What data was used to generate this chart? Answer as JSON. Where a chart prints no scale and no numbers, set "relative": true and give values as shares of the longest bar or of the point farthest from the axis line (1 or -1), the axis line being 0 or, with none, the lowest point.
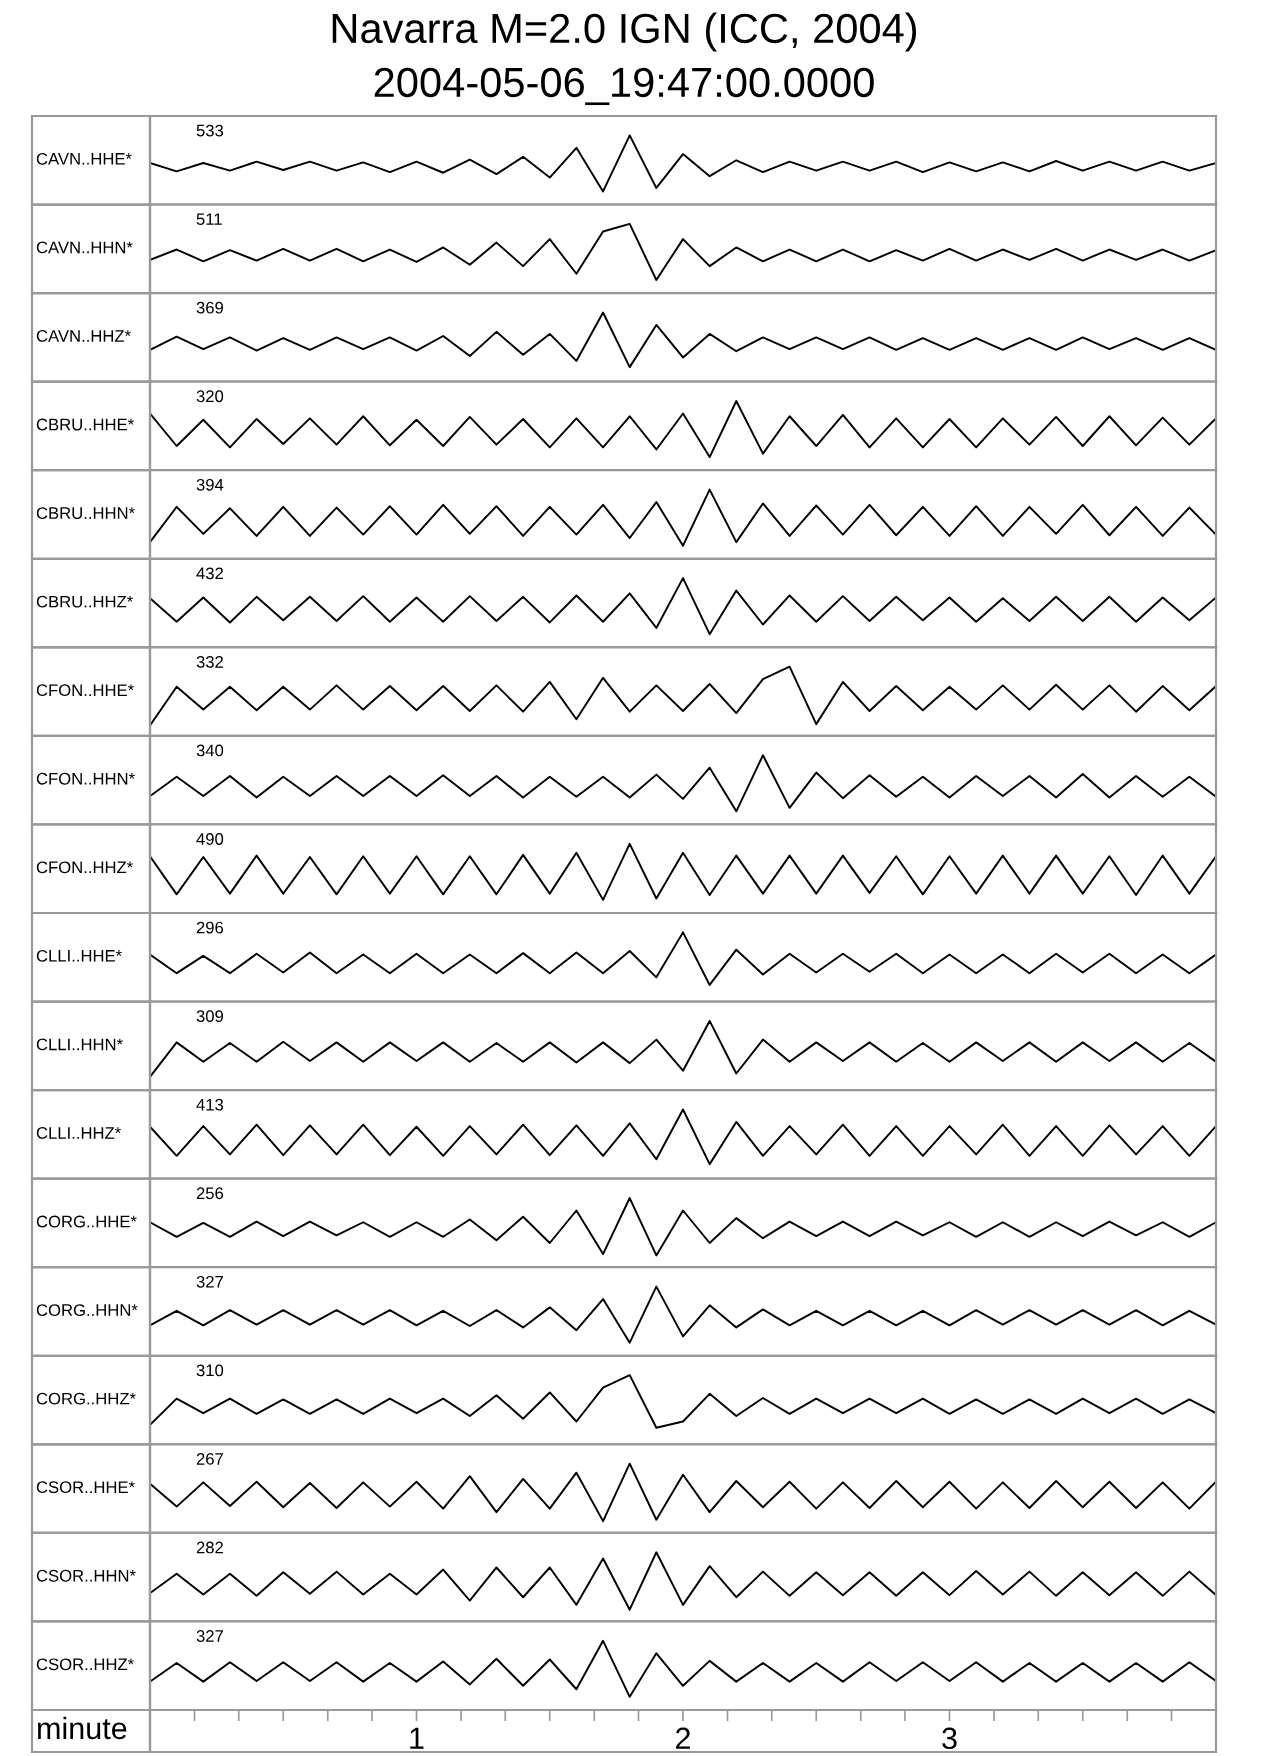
{
  "chart_data": [
    {
      "type": "line",
      "relative": true,
      "title": "Navarra M=2.0 IGN (ICC, 2004)",
      "subtitle": "2004-05-06_19:47:00.0000",
      "ylabel": "CAVN..HHE*",
      "annotations": [
        "533"
      ],
      "xlim": [
        0,
        4
      ],
      "tick_labels": false,
      "x": [
        0,
        0.1,
        0.2,
        0.3,
        0.4,
        0.5,
        0.6,
        0.7,
        0.8,
        0.9,
        1,
        1.1,
        1.2,
        1.3,
        1.4,
        1.5,
        1.6,
        1.7,
        1.8,
        1.9,
        2,
        2.1,
        2.2,
        2.3,
        2.4,
        2.5,
        2.6,
        2.7,
        2.8,
        2.9,
        3,
        3.1,
        3.2,
        3.3,
        3.4,
        3.5,
        3.6,
        3.7,
        3.8,
        3.9,
        4
      ],
      "series": [
        {
          "color": "#000000",
          "values": [
            0.6,
            0.48,
            0.6,
            0.49,
            0.62,
            0.5,
            0.62,
            0.49,
            0.61,
            0.47,
            0.62,
            0.46,
            0.65,
            0.44,
            0.69,
            0.39,
            0.82,
            0.19,
            1,
            0.24,
            0.73,
            0.41,
            0.64,
            0.47,
            0.62,
            0.49,
            0.62,
            0.49,
            0.62,
            0.47,
            0.61,
            0.48,
            0.61,
            0.48,
            0.63,
            0.49,
            0.62,
            0.49,
            0.62,
            0.49,
            0.6
          ]
        }
      ]
    },
    {
      "type": "line",
      "relative": true,
      "ylabel": "CAVN..HHN*",
      "annotations": [
        "511"
      ],
      "xlim": [
        0,
        4
      ],
      "tick_labels": false,
      "x": [
        0,
        0.1,
        0.2,
        0.3,
        0.4,
        0.5,
        0.6,
        0.7,
        0.8,
        0.9,
        1,
        1.1,
        1.2,
        1.3,
        1.4,
        1.5,
        1.6,
        1.7,
        1.8,
        1.9,
        2,
        2.1,
        2.2,
        2.3,
        2.4,
        2.5,
        2.6,
        2.7,
        2.8,
        2.9,
        3,
        3.1,
        3.2,
        3.3,
        3.4,
        3.5,
        3.6,
        3.7,
        3.8,
        3.9,
        4
      ],
      "series": [
        {
          "color": "#000000",
          "values": [
            0.48,
            0.63,
            0.46,
            0.62,
            0.47,
            0.64,
            0.47,
            0.64,
            0.46,
            0.63,
            0.45,
            0.66,
            0.41,
            0.73,
            0.39,
            0.78,
            0.28,
            0.89,
            1,
            0.19,
            0.78,
            0.39,
            0.66,
            0.46,
            0.63,
            0.46,
            0.63,
            0.46,
            0.62,
            0.47,
            0.64,
            0.47,
            0.63,
            0.48,
            0.64,
            0.47,
            0.63,
            0.48,
            0.63,
            0.47,
            0.62
          ]
        }
      ]
    },
    {
      "type": "line",
      "relative": true,
      "ylabel": "CAVN..HHZ*",
      "annotations": [
        "369"
      ],
      "xlim": [
        0,
        4
      ],
      "tick_labels": false,
      "x": [
        0,
        0.1,
        0.2,
        0.3,
        0.4,
        0.5,
        0.6,
        0.7,
        0.8,
        0.9,
        1,
        1.1,
        1.2,
        1.3,
        1.4,
        1.5,
        1.6,
        1.7,
        1.8,
        1.9,
        2,
        2.1,
        2.2,
        2.3,
        2.4,
        2.5,
        2.6,
        2.7,
        2.8,
        2.9,
        3,
        3.1,
        3.2,
        3.3,
        3.4,
        3.5,
        3.6,
        3.7,
        3.8,
        3.9,
        4
      ],
      "series": [
        {
          "color": "#000000",
          "values": [
            0.46,
            0.65,
            0.47,
            0.64,
            0.45,
            0.63,
            0.46,
            0.64,
            0.47,
            0.64,
            0.45,
            0.66,
            0.37,
            0.72,
            0.39,
            0.69,
            0.3,
            1,
            0.21,
            0.82,
            0.35,
            0.69,
            0.44,
            0.64,
            0.47,
            0.64,
            0.47,
            0.64,
            0.46,
            0.63,
            0.46,
            0.63,
            0.46,
            0.63,
            0.46,
            0.64,
            0.47,
            0.63,
            0.46,
            0.63,
            0.46
          ]
        }
      ]
    },
    {
      "type": "line",
      "relative": true,
      "ylabel": "CBRU..HHE*",
      "annotations": [
        "320"
      ],
      "xlim": [
        0,
        4
      ],
      "tick_labels": false,
      "x": [
        0,
        0.1,
        0.2,
        0.3,
        0.4,
        0.5,
        0.6,
        0.7,
        0.8,
        0.9,
        1,
        1.1,
        1.2,
        1.3,
        1.4,
        1.5,
        1.6,
        1.7,
        1.8,
        1.9,
        2,
        2.1,
        2.2,
        2.3,
        2.4,
        2.5,
        2.6,
        2.7,
        2.8,
        2.9,
        3,
        3.1,
        3.2,
        3.3,
        3.4,
        3.5,
        3.6,
        3.7,
        3.8,
        3.9,
        4
      ],
      "series": [
        {
          "color": "#000000",
          "values": [
            0.82,
            0.35,
            0.73,
            0.33,
            0.74,
            0.38,
            0.75,
            0.37,
            0.78,
            0.36,
            0.73,
            0.35,
            0.77,
            0.37,
            0.74,
            0.33,
            0.75,
            0.33,
            0.78,
            0.3,
            0.82,
            0.19,
            1,
            0.24,
            0.78,
            0.35,
            0.8,
            0.33,
            0.75,
            0.33,
            0.74,
            0.33,
            0.75,
            0.37,
            0.77,
            0.35,
            0.78,
            0.36,
            0.76,
            0.37,
            0.75
          ]
        }
      ]
    },
    {
      "type": "line",
      "relative": true,
      "ylabel": "CBRU..HHN*",
      "annotations": [
        "394"
      ],
      "xlim": [
        0,
        4
      ],
      "tick_labels": false,
      "x": [
        0,
        0.1,
        0.2,
        0.3,
        0.4,
        0.5,
        0.6,
        0.7,
        0.8,
        0.9,
        1,
        1.1,
        1.2,
        1.3,
        1.4,
        1.5,
        1.6,
        1.7,
        1.8,
        1.9,
        2,
        2.1,
        2.2,
        2.3,
        2.4,
        2.5,
        2.6,
        2.7,
        2.8,
        2.9,
        3,
        3.1,
        3.2,
        3.3,
        3.4,
        3.5,
        3.6,
        3.7,
        3.8,
        3.9,
        4
      ],
      "series": [
        {
          "color": "#000000",
          "values": [
            0.24,
            0.75,
            0.36,
            0.73,
            0.33,
            0.75,
            0.33,
            0.74,
            0.35,
            0.76,
            0.35,
            0.78,
            0.36,
            0.76,
            0.33,
            0.75,
            0.35,
            0.78,
            0.3,
            0.82,
            0.19,
            1,
            0.24,
            0.8,
            0.33,
            0.77,
            0.35,
            0.78,
            0.34,
            0.75,
            0.33,
            0.76,
            0.33,
            0.75,
            0.36,
            0.78,
            0.34,
            0.75,
            0.33,
            0.74,
            0.35
          ]
        }
      ]
    },
    {
      "type": "line",
      "relative": true,
      "ylabel": "CBRU..HHZ*",
      "annotations": [
        "432"
      ],
      "xlim": [
        0,
        4
      ],
      "tick_labels": false,
      "x": [
        0,
        0.1,
        0.2,
        0.3,
        0.4,
        0.5,
        0.6,
        0.7,
        0.8,
        0.9,
        1,
        1.1,
        1.2,
        1.3,
        1.4,
        1.5,
        1.6,
        1.7,
        1.8,
        1.9,
        2,
        2.1,
        2.2,
        2.3,
        2.4,
        2.5,
        2.6,
        2.7,
        2.8,
        2.9,
        3,
        3.1,
        3.2,
        3.3,
        3.4,
        3.5,
        3.6,
        3.7,
        3.8,
        3.9,
        4
      ],
      "series": [
        {
          "color": "#000000",
          "values": [
            0.71,
            0.37,
            0.72,
            0.36,
            0.73,
            0.39,
            0.73,
            0.38,
            0.74,
            0.37,
            0.72,
            0.37,
            0.74,
            0.38,
            0.73,
            0.36,
            0.75,
            0.37,
            0.78,
            0.28,
            1,
            0.19,
            0.82,
            0.33,
            0.75,
            0.37,
            0.74,
            0.38,
            0.73,
            0.39,
            0.72,
            0.37,
            0.71,
            0.38,
            0.73,
            0.38,
            0.73,
            0.37,
            0.72,
            0.39,
            0.72
          ]
        }
      ]
    },
    {
      "type": "line",
      "relative": true,
      "ylabel": "CFON..HHE*",
      "annotations": [
        "332"
      ],
      "xlim": [
        0,
        4
      ],
      "tick_labels": false,
      "x": [
        0,
        0.1,
        0.2,
        0.3,
        0.4,
        0.5,
        0.6,
        0.7,
        0.8,
        0.9,
        1,
        1.1,
        1.2,
        1.3,
        1.4,
        1.5,
        1.6,
        1.7,
        1.8,
        1.9,
        2,
        2.1,
        2.2,
        2.3,
        2.4,
        2.5,
        2.6,
        2.7,
        2.8,
        2.9,
        3,
        3.1,
        3.2,
        3.3,
        3.4,
        3.5,
        3.6,
        3.7,
        3.8,
        3.9,
        4
      ],
      "series": [
        {
          "color": "#000000",
          "values": [
            0.15,
            0.71,
            0.38,
            0.71,
            0.37,
            0.71,
            0.38,
            0.73,
            0.38,
            0.72,
            0.37,
            0.72,
            0.36,
            0.73,
            0.35,
            0.78,
            0.24,
            0.84,
            0.35,
            0.73,
            0.36,
            0.75,
            0.33,
            0.82,
            1,
            0.17,
            0.78,
            0.36,
            0.72,
            0.37,
            0.71,
            0.38,
            0.73,
            0.38,
            0.74,
            0.38,
            0.73,
            0.35,
            0.72,
            0.37,
            0.72
          ]
        }
      ]
    },
    {
      "type": "line",
      "relative": true,
      "ylabel": "CFON..HHN*",
      "annotations": [
        "340"
      ],
      "xlim": [
        0,
        4
      ],
      "tick_labels": false,
      "x": [
        0,
        0.1,
        0.2,
        0.3,
        0.4,
        0.5,
        0.6,
        0.7,
        0.8,
        0.9,
        1,
        1.1,
        1.2,
        1.3,
        1.4,
        1.5,
        1.6,
        1.7,
        1.8,
        1.9,
        2,
        2.1,
        2.2,
        2.3,
        2.4,
        2.5,
        2.6,
        2.7,
        2.8,
        2.9,
        3,
        3.1,
        3.2,
        3.3,
        3.4,
        3.5,
        3.6,
        3.7,
        3.8,
        3.9,
        4
      ],
      "series": [
        {
          "color": "#000000",
          "values": [
            0.41,
            0.69,
            0.41,
            0.7,
            0.39,
            0.69,
            0.41,
            0.7,
            0.41,
            0.7,
            0.41,
            0.71,
            0.41,
            0.7,
            0.39,
            0.69,
            0.4,
            0.69,
            0.39,
            0.72,
            0.37,
            0.82,
            0.19,
            1,
            0.24,
            0.75,
            0.38,
            0.71,
            0.4,
            0.69,
            0.39,
            0.7,
            0.41,
            0.7,
            0.39,
            0.73,
            0.39,
            0.7,
            0.4,
            0.69,
            0.4
          ]
        }
      ]
    },
    {
      "type": "line",
      "relative": true,
      "ylabel": "CFON..HHZ*",
      "annotations": [
        "490"
      ],
      "xlim": [
        0,
        4
      ],
      "tick_labels": false,
      "x": [
        0,
        0.1,
        0.2,
        0.3,
        0.4,
        0.5,
        0.6,
        0.7,
        0.8,
        0.9,
        1,
        1.1,
        1.2,
        1.3,
        1.4,
        1.5,
        1.6,
        1.7,
        1.8,
        1.9,
        2,
        2.1,
        2.2,
        2.3,
        2.4,
        2.5,
        2.6,
        2.7,
        2.8,
        2.9,
        3,
        3.1,
        3.2,
        3.3,
        3.4,
        3.5,
        3.6,
        3.7,
        3.8,
        3.9,
        4
      ],
      "series": [
        {
          "color": "#000000",
          "values": [
            0.82,
            0.27,
            0.81,
            0.28,
            0.83,
            0.28,
            0.81,
            0.27,
            0.82,
            0.28,
            0.82,
            0.27,
            0.82,
            0.27,
            0.84,
            0.28,
            0.87,
            0.19,
            1,
            0.21,
            0.87,
            0.26,
            0.83,
            0.28,
            0.83,
            0.28,
            0.83,
            0.29,
            0.82,
            0.27,
            0.82,
            0.28,
            0.83,
            0.28,
            0.83,
            0.28,
            0.82,
            0.26,
            0.83,
            0.28,
            0.82
          ]
        }
      ]
    },
    {
      "type": "line",
      "relative": true,
      "ylabel": "CLLI..HHE*",
      "annotations": [
        "296"
      ],
      "xlim": [
        0,
        4
      ],
      "tick_labels": false,
      "x": [
        0,
        0.1,
        0.2,
        0.3,
        0.4,
        0.5,
        0.6,
        0.7,
        0.8,
        0.9,
        1,
        1.1,
        1.2,
        1.3,
        1.4,
        1.5,
        1.6,
        1.7,
        1.8,
        1.9,
        2,
        2.1,
        2.2,
        2.3,
        2.4,
        2.5,
        2.6,
        2.7,
        2.8,
        2.9,
        3,
        3.1,
        3.2,
        3.3,
        3.4,
        3.5,
        3.6,
        3.7,
        3.8,
        3.9,
        4
      ],
      "series": [
        {
          "color": "#000000",
          "values": [
            0.68,
            0.41,
            0.66,
            0.41,
            0.69,
            0.42,
            0.71,
            0.41,
            0.68,
            0.41,
            0.69,
            0.41,
            0.68,
            0.41,
            0.7,
            0.41,
            0.71,
            0.41,
            0.73,
            0.35,
            1,
            0.24,
            0.75,
            0.39,
            0.69,
            0.42,
            0.69,
            0.43,
            0.69,
            0.41,
            0.68,
            0.41,
            0.68,
            0.41,
            0.69,
            0.42,
            0.69,
            0.41,
            0.68,
            0.41,
            0.68
          ]
        }
      ]
    },
    {
      "type": "line",
      "relative": true,
      "ylabel": "CLLI..HHN*",
      "annotations": [
        "309"
      ],
      "xlim": [
        0,
        4
      ],
      "tick_labels": false,
      "x": [
        0,
        0.1,
        0.2,
        0.3,
        0.4,
        0.5,
        0.6,
        0.7,
        0.8,
        0.9,
        1,
        1.1,
        1.2,
        1.3,
        1.4,
        1.5,
        1.6,
        1.7,
        1.8,
        1.9,
        2,
        2.1,
        2.2,
        2.3,
        2.4,
        2.5,
        2.6,
        2.7,
        2.8,
        2.9,
        3,
        3.1,
        3.2,
        3.3,
        3.4,
        3.5,
        3.6,
        3.7,
        3.8,
        3.9,
        4
      ],
      "series": [
        {
          "color": "#000000",
          "values": [
            0.19,
            0.69,
            0.41,
            0.68,
            0.41,
            0.7,
            0.42,
            0.69,
            0.41,
            0.69,
            0.42,
            0.69,
            0.41,
            0.68,
            0.41,
            0.69,
            0.4,
            0.69,
            0.39,
            0.73,
            0.28,
            1,
            0.24,
            0.73,
            0.41,
            0.69,
            0.42,
            0.69,
            0.41,
            0.68,
            0.41,
            0.69,
            0.42,
            0.69,
            0.41,
            0.69,
            0.42,
            0.69,
            0.41,
            0.68,
            0.41
          ]
        }
      ]
    },
    {
      "type": "line",
      "relative": true,
      "ylabel": "CLLI..HHZ*",
      "annotations": [
        "413"
      ],
      "xlim": [
        0,
        4
      ],
      "tick_labels": false,
      "x": [
        0,
        0.1,
        0.2,
        0.3,
        0.4,
        0.5,
        0.6,
        0.7,
        0.8,
        0.9,
        1,
        1.1,
        1.2,
        1.3,
        1.4,
        1.5,
        1.6,
        1.7,
        1.8,
        1.9,
        2,
        2.1,
        2.2,
        2.3,
        2.4,
        2.5,
        2.6,
        2.7,
        2.8,
        2.9,
        3,
        3.1,
        3.2,
        3.3,
        3.4,
        3.5,
        3.6,
        3.7,
        3.8,
        3.9,
        4
      ],
      "series": [
        {
          "color": "#000000",
          "values": [
            0.75,
            0.33,
            0.76,
            0.35,
            0.78,
            0.34,
            0.77,
            0.35,
            0.78,
            0.34,
            0.75,
            0.33,
            0.76,
            0.35,
            0.78,
            0.34,
            0.77,
            0.33,
            0.8,
            0.28,
            1,
            0.21,
            0.82,
            0.33,
            0.76,
            0.35,
            0.78,
            0.33,
            0.76,
            0.33,
            0.76,
            0.35,
            0.78,
            0.33,
            0.76,
            0.33,
            0.77,
            0.35,
            0.76,
            0.33,
            0.76
          ]
        }
      ]
    },
    {
      "type": "line",
      "relative": true,
      "ylabel": "CORG..HHE*",
      "annotations": [
        "256"
      ],
      "xlim": [
        0,
        4
      ],
      "tick_labels": false,
      "x": [
        0,
        0.1,
        0.2,
        0.3,
        0.4,
        0.5,
        0.6,
        0.7,
        0.8,
        0.9,
        1,
        1.1,
        1.2,
        1.3,
        1.4,
        1.5,
        1.6,
        1.7,
        1.8,
        1.9,
        2,
        2.1,
        2.2,
        2.3,
        2.4,
        2.5,
        2.6,
        2.7,
        2.8,
        2.9,
        3,
        3.1,
        3.2,
        3.3,
        3.4,
        3.5,
        3.6,
        3.7,
        3.8,
        3.9,
        4
      ],
      "series": [
        {
          "color": "#000000",
          "values": [
            0.65,
            0.44,
            0.64,
            0.44,
            0.66,
            0.45,
            0.66,
            0.46,
            0.65,
            0.44,
            0.65,
            0.44,
            0.69,
            0.39,
            0.73,
            0.35,
            0.82,
            0.19,
            1,
            0.17,
            0.82,
            0.35,
            0.71,
            0.42,
            0.66,
            0.45,
            0.66,
            0.45,
            0.66,
            0.46,
            0.65,
            0.44,
            0.65,
            0.44,
            0.65,
            0.45,
            0.66,
            0.46,
            0.65,
            0.44,
            0.65
          ]
        }
      ]
    },
    {
      "type": "line",
      "relative": true,
      "ylabel": "CORG..HHN*",
      "annotations": [
        "327"
      ],
      "xlim": [
        0,
        4
      ],
      "tick_labels": false,
      "x": [
        0,
        0.1,
        0.2,
        0.3,
        0.4,
        0.5,
        0.6,
        0.7,
        0.8,
        0.9,
        1,
        1.1,
        1.2,
        1.3,
        1.4,
        1.5,
        1.6,
        1.7,
        1.8,
        1.9,
        2,
        2.1,
        2.2,
        2.3,
        2.4,
        2.5,
        2.6,
        2.7,
        2.8,
        2.9,
        3,
        3.1,
        3.2,
        3.3,
        3.4,
        3.5,
        3.6,
        3.7,
        3.8,
        3.9,
        4
      ],
      "series": [
        {
          "color": "#000000",
          "values": [
            0.44,
            0.65,
            0.44,
            0.66,
            0.45,
            0.66,
            0.45,
            0.66,
            0.45,
            0.66,
            0.44,
            0.65,
            0.43,
            0.66,
            0.41,
            0.7,
            0.37,
            0.82,
            0.19,
            1,
            0.28,
            0.73,
            0.41,
            0.67,
            0.44,
            0.65,
            0.44,
            0.65,
            0.44,
            0.65,
            0.44,
            0.66,
            0.45,
            0.66,
            0.45,
            0.66,
            0.45,
            0.66,
            0.44,
            0.65,
            0.45
          ]
        }
      ]
    },
    {
      "type": "line",
      "relative": true,
      "ylabel": "CORG..HHZ*",
      "annotations": [
        "310"
      ],
      "xlim": [
        0,
        4
      ],
      "tick_labels": false,
      "x": [
        0,
        0.1,
        0.2,
        0.3,
        0.4,
        0.5,
        0.6,
        0.7,
        0.8,
        0.9,
        1,
        1.1,
        1.2,
        1.3,
        1.4,
        1.5,
        1.6,
        1.7,
        1.8,
        1.9,
        2,
        2.1,
        2.2,
        2.3,
        2.4,
        2.5,
        2.6,
        2.7,
        2.8,
        2.9,
        3,
        3.1,
        3.2,
        3.3,
        3.4,
        3.5,
        3.6,
        3.7,
        3.8,
        3.9,
        4
      ],
      "series": [
        {
          "color": "#000000",
          "values": [
            0.28,
            0.66,
            0.45,
            0.66,
            0.44,
            0.65,
            0.44,
            0.65,
            0.44,
            0.66,
            0.45,
            0.66,
            0.41,
            0.71,
            0.37,
            0.75,
            0.33,
            0.82,
            1,
            0.24,
            0.33,
            0.73,
            0.41,
            0.67,
            0.44,
            0.66,
            0.45,
            0.66,
            0.45,
            0.66,
            0.44,
            0.65,
            0.44,
            0.65,
            0.44,
            0.66,
            0.45,
            0.66,
            0.44,
            0.65,
            0.45
          ]
        }
      ]
    },
    {
      "type": "line",
      "relative": true,
      "ylabel": "CSOR..HHE*",
      "annotations": [
        "267"
      ],
      "xlim": [
        0,
        4
      ],
      "tick_labels": false,
      "x": [
        0,
        0.1,
        0.2,
        0.3,
        0.4,
        0.5,
        0.6,
        0.7,
        0.8,
        0.9,
        1,
        1.1,
        1.2,
        1.3,
        1.4,
        1.5,
        1.6,
        1.7,
        1.8,
        1.9,
        2,
        2.1,
        2.2,
        2.3,
        2.4,
        2.5,
        2.6,
        2.7,
        2.8,
        2.9,
        3,
        3.1,
        3.2,
        3.3,
        3.4,
        3.5,
        3.6,
        3.7,
        3.8,
        3.9,
        4
      ],
      "series": [
        {
          "color": "#000000",
          "values": [
            0.71,
            0.38,
            0.73,
            0.39,
            0.74,
            0.37,
            0.72,
            0.36,
            0.73,
            0.38,
            0.74,
            0.35,
            0.82,
            0.3,
            0.78,
            0.35,
            0.87,
            0.17,
            1,
            0.19,
            0.84,
            0.3,
            0.75,
            0.37,
            0.74,
            0.35,
            0.73,
            0.36,
            0.75,
            0.37,
            0.74,
            0.35,
            0.73,
            0.36,
            0.75,
            0.37,
            0.74,
            0.36,
            0.73,
            0.35,
            0.74
          ]
        }
      ]
    },
    {
      "type": "line",
      "relative": true,
      "ylabel": "CSOR..HHN*",
      "annotations": [
        "282"
      ],
      "xlim": [
        0,
        4
      ],
      "tick_labels": false,
      "x": [
        0,
        0.1,
        0.2,
        0.3,
        0.4,
        0.5,
        0.6,
        0.7,
        0.8,
        0.9,
        1,
        1.1,
        1.2,
        1.3,
        1.4,
        1.5,
        1.6,
        1.7,
        1.8,
        1.9,
        2,
        2.1,
        2.2,
        2.3,
        2.4,
        2.5,
        2.6,
        2.7,
        2.8,
        2.9,
        3,
        3.1,
        3.2,
        3.3,
        3.4,
        3.5,
        3.6,
        3.7,
        3.8,
        3.9,
        4
      ],
      "series": [
        {
          "color": "#000000",
          "values": [
            0.41,
            0.69,
            0.39,
            0.69,
            0.37,
            0.71,
            0.4,
            0.72,
            0.39,
            0.69,
            0.39,
            0.75,
            0.3,
            0.78,
            0.35,
            0.78,
            0.24,
            0.91,
            0.17,
            1,
            0.24,
            0.8,
            0.35,
            0.72,
            0.37,
            0.71,
            0.38,
            0.71,
            0.37,
            0.71,
            0.38,
            0.73,
            0.39,
            0.72,
            0.37,
            0.71,
            0.38,
            0.71,
            0.37,
            0.72,
            0.38
          ]
        }
      ]
    },
    {
      "type": "line",
      "relative": true,
      "ylabel": "CSOR..HHZ*",
      "annotations": [
        "327"
      ],
      "xlabel": "minute",
      "xlim": [
        0,
        4
      ],
      "tick_labels": "x",
      "xticks": [
        {
          "value": 0.167,
          "label": null
        },
        {
          "value": 0.333,
          "label": null
        },
        {
          "value": 0.5,
          "label": null
        },
        {
          "value": 0.667,
          "label": null
        },
        {
          "value": 0.833,
          "label": null
        },
        1,
        {
          "value": 1.167,
          "label": null
        },
        {
          "value": 1.333,
          "label": null
        },
        {
          "value": 1.5,
          "label": null
        },
        {
          "value": 1.667,
          "label": null
        },
        {
          "value": 1.833,
          "label": null
        },
        2,
        {
          "value": 2.167,
          "label": null
        },
        {
          "value": 2.333,
          "label": null
        },
        {
          "value": 2.5,
          "label": null
        },
        {
          "value": 2.667,
          "label": null
        },
        {
          "value": 2.833,
          "label": null
        },
        3,
        {
          "value": 3.167,
          "label": null
        },
        {
          "value": 3.333,
          "label": null
        },
        {
          "value": 3.5,
          "label": null
        },
        {
          "value": 3.667,
          "label": null
        },
        {
          "value": 3.833,
          "label": null
        }
      ],
      "x": [
        0,
        0.1,
        0.2,
        0.3,
        0.4,
        0.5,
        0.6,
        0.7,
        0.8,
        0.9,
        1,
        1.1,
        1.2,
        1.3,
        1.4,
        1.5,
        1.6,
        1.7,
        1.8,
        1.9,
        2,
        2.1,
        2.2,
        2.3,
        2.4,
        2.5,
        2.6,
        2.7,
        2.8,
        2.9,
        3,
        3.1,
        3.2,
        3.3,
        3.4,
        3.5,
        3.6,
        3.7,
        3.8,
        3.9,
        4
      ],
      "series": [
        {
          "color": "#000000",
          "values": [
            0.41,
            0.68,
            0.41,
            0.69,
            0.42,
            0.69,
            0.42,
            0.69,
            0.41,
            0.68,
            0.41,
            0.7,
            0.37,
            0.74,
            0.35,
            0.73,
            0.3,
            1,
            0.19,
            0.82,
            0.35,
            0.71,
            0.41,
            0.68,
            0.41,
            0.68,
            0.41,
            0.69,
            0.42,
            0.69,
            0.42,
            0.69,
            0.41,
            0.68,
            0.41,
            0.68,
            0.41,
            0.68,
            0.41,
            0.69,
            0.42
          ]
        }
      ]
    }
  ]
}
